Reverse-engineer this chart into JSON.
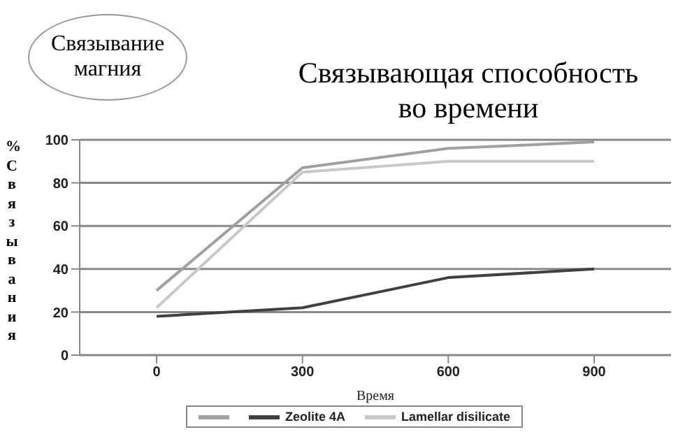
{
  "chart_data": {
    "type": "line",
    "title": "Связывающая способность во времени",
    "xlabel": "Время",
    "ylabel": "% Связывания",
    "annotations": [
      "Связывание магния"
    ],
    "categories": [
      "0",
      "300",
      "600",
      "900"
    ],
    "series": [
      {
        "color": "#a0a0a0",
        "values": [
          30,
          87,
          96,
          99
        ]
      },
      {
        "name": "Zeolite 4A",
        "color": "#404040",
        "values": [
          18,
          22,
          36,
          40
        ]
      },
      {
        "name": "Lamellar disilicate",
        "color": "#c8c8c8",
        "values": [
          22,
          85,
          90,
          90
        ]
      }
    ],
    "ylim": [
      0,
      100
    ],
    "yticks": [
      0,
      20,
      40,
      60,
      80,
      100
    ],
    "grid": "y",
    "legend": "bottom",
    "marker": "none"
  }
}
